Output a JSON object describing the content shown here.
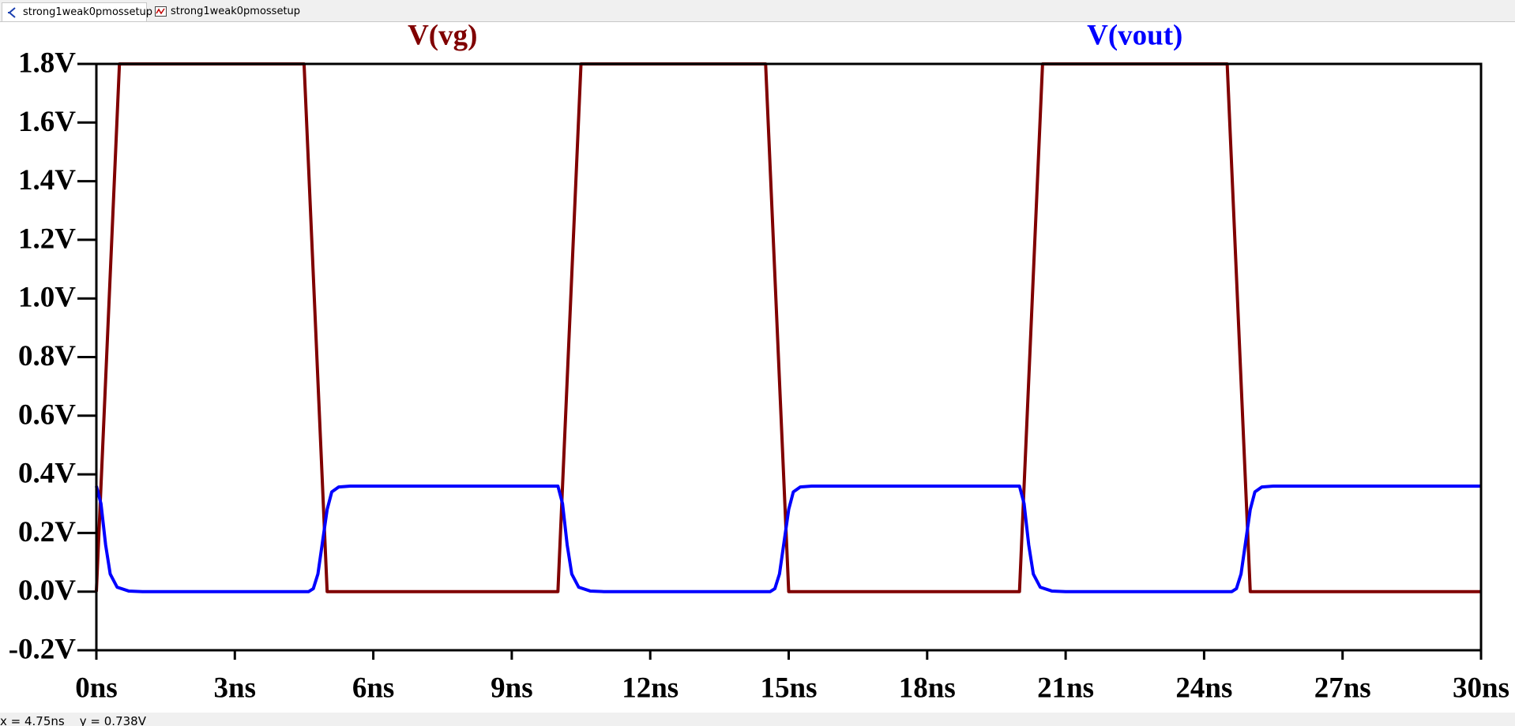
{
  "tabs": [
    "strong1weak0pmossetup",
    "strong1weak0pmossetup"
  ],
  "chart_data": {
    "type": "line",
    "series": [
      {
        "name": "V(vg)",
        "color": "#800000",
        "x": [
          0,
          0.5,
          4.5,
          5,
          10,
          10.5,
          14.5,
          15,
          20,
          20.5,
          24.5,
          25,
          30
        ],
        "values": [
          0,
          1.8,
          1.8,
          0,
          0,
          1.8,
          1.8,
          0,
          0,
          1.8,
          1.8,
          0,
          0
        ]
      },
      {
        "name": "V(vout)",
        "color": "#0000ff",
        "x": [
          0,
          0.1,
          0.2,
          0.3,
          0.45,
          0.7,
          1,
          4.6,
          4.7,
          4.8,
          4.9,
          5,
          5.1,
          5.25,
          5.5,
          10,
          10.1,
          10.2,
          10.3,
          10.45,
          10.7,
          11,
          14.6,
          14.7,
          14.8,
          14.9,
          15,
          15.1,
          15.25,
          15.5,
          20,
          20.1,
          20.2,
          20.3,
          20.45,
          20.7,
          21,
          24.6,
          24.7,
          24.8,
          24.9,
          25,
          25.1,
          25.25,
          25.5,
          30
        ],
        "values": [
          0.36,
          0.3,
          0.16,
          0.06,
          0.015,
          0.002,
          0,
          0,
          0.01,
          0.06,
          0.17,
          0.28,
          0.34,
          0.357,
          0.36,
          0.36,
          0.3,
          0.16,
          0.06,
          0.015,
          0.002,
          0,
          0,
          0.01,
          0.06,
          0.17,
          0.28,
          0.34,
          0.357,
          0.36,
          0.36,
          0.3,
          0.16,
          0.06,
          0.015,
          0.002,
          0,
          0,
          0.01,
          0.06,
          0.17,
          0.28,
          0.34,
          0.357,
          0.36,
          0.36
        ]
      }
    ],
    "xlim": [
      0,
      30
    ],
    "xticks": [
      {
        "value": 0,
        "label": "0ns"
      },
      {
        "value": 3,
        "label": "3ns"
      },
      {
        "value": 6,
        "label": "6ns"
      },
      {
        "value": 9,
        "label": "9ns"
      },
      {
        "value": 12,
        "label": "12ns"
      },
      {
        "value": 15,
        "label": "15ns"
      },
      {
        "value": 18,
        "label": "18ns"
      },
      {
        "value": 21,
        "label": "21ns"
      },
      {
        "value": 24,
        "label": "24ns"
      },
      {
        "value": 27,
        "label": "27ns"
      },
      {
        "value": 30,
        "label": "30ns"
      }
    ],
    "ylim": [
      -0.2,
      1.8
    ],
    "yticks": [
      {
        "value": -0.2,
        "label": "-0.2V"
      },
      {
        "value": 0,
        "label": "0.0V"
      },
      {
        "value": 0.2,
        "label": "0.2V"
      },
      {
        "value": 0.4,
        "label": "0.4V"
      },
      {
        "value": 0.6,
        "label": "0.6V"
      },
      {
        "value": 0.8,
        "label": "0.8V"
      },
      {
        "value": 1,
        "label": "1.0V"
      },
      {
        "value": 1.2,
        "label": "1.2V"
      },
      {
        "value": 1.4,
        "label": "1.4V"
      },
      {
        "value": 1.6,
        "label": "1.6V"
      },
      {
        "value": 1.8,
        "label": "1.8V"
      }
    ],
    "grid": false
  },
  "status_bar": "x = 4.75ns    y = 0.738V"
}
